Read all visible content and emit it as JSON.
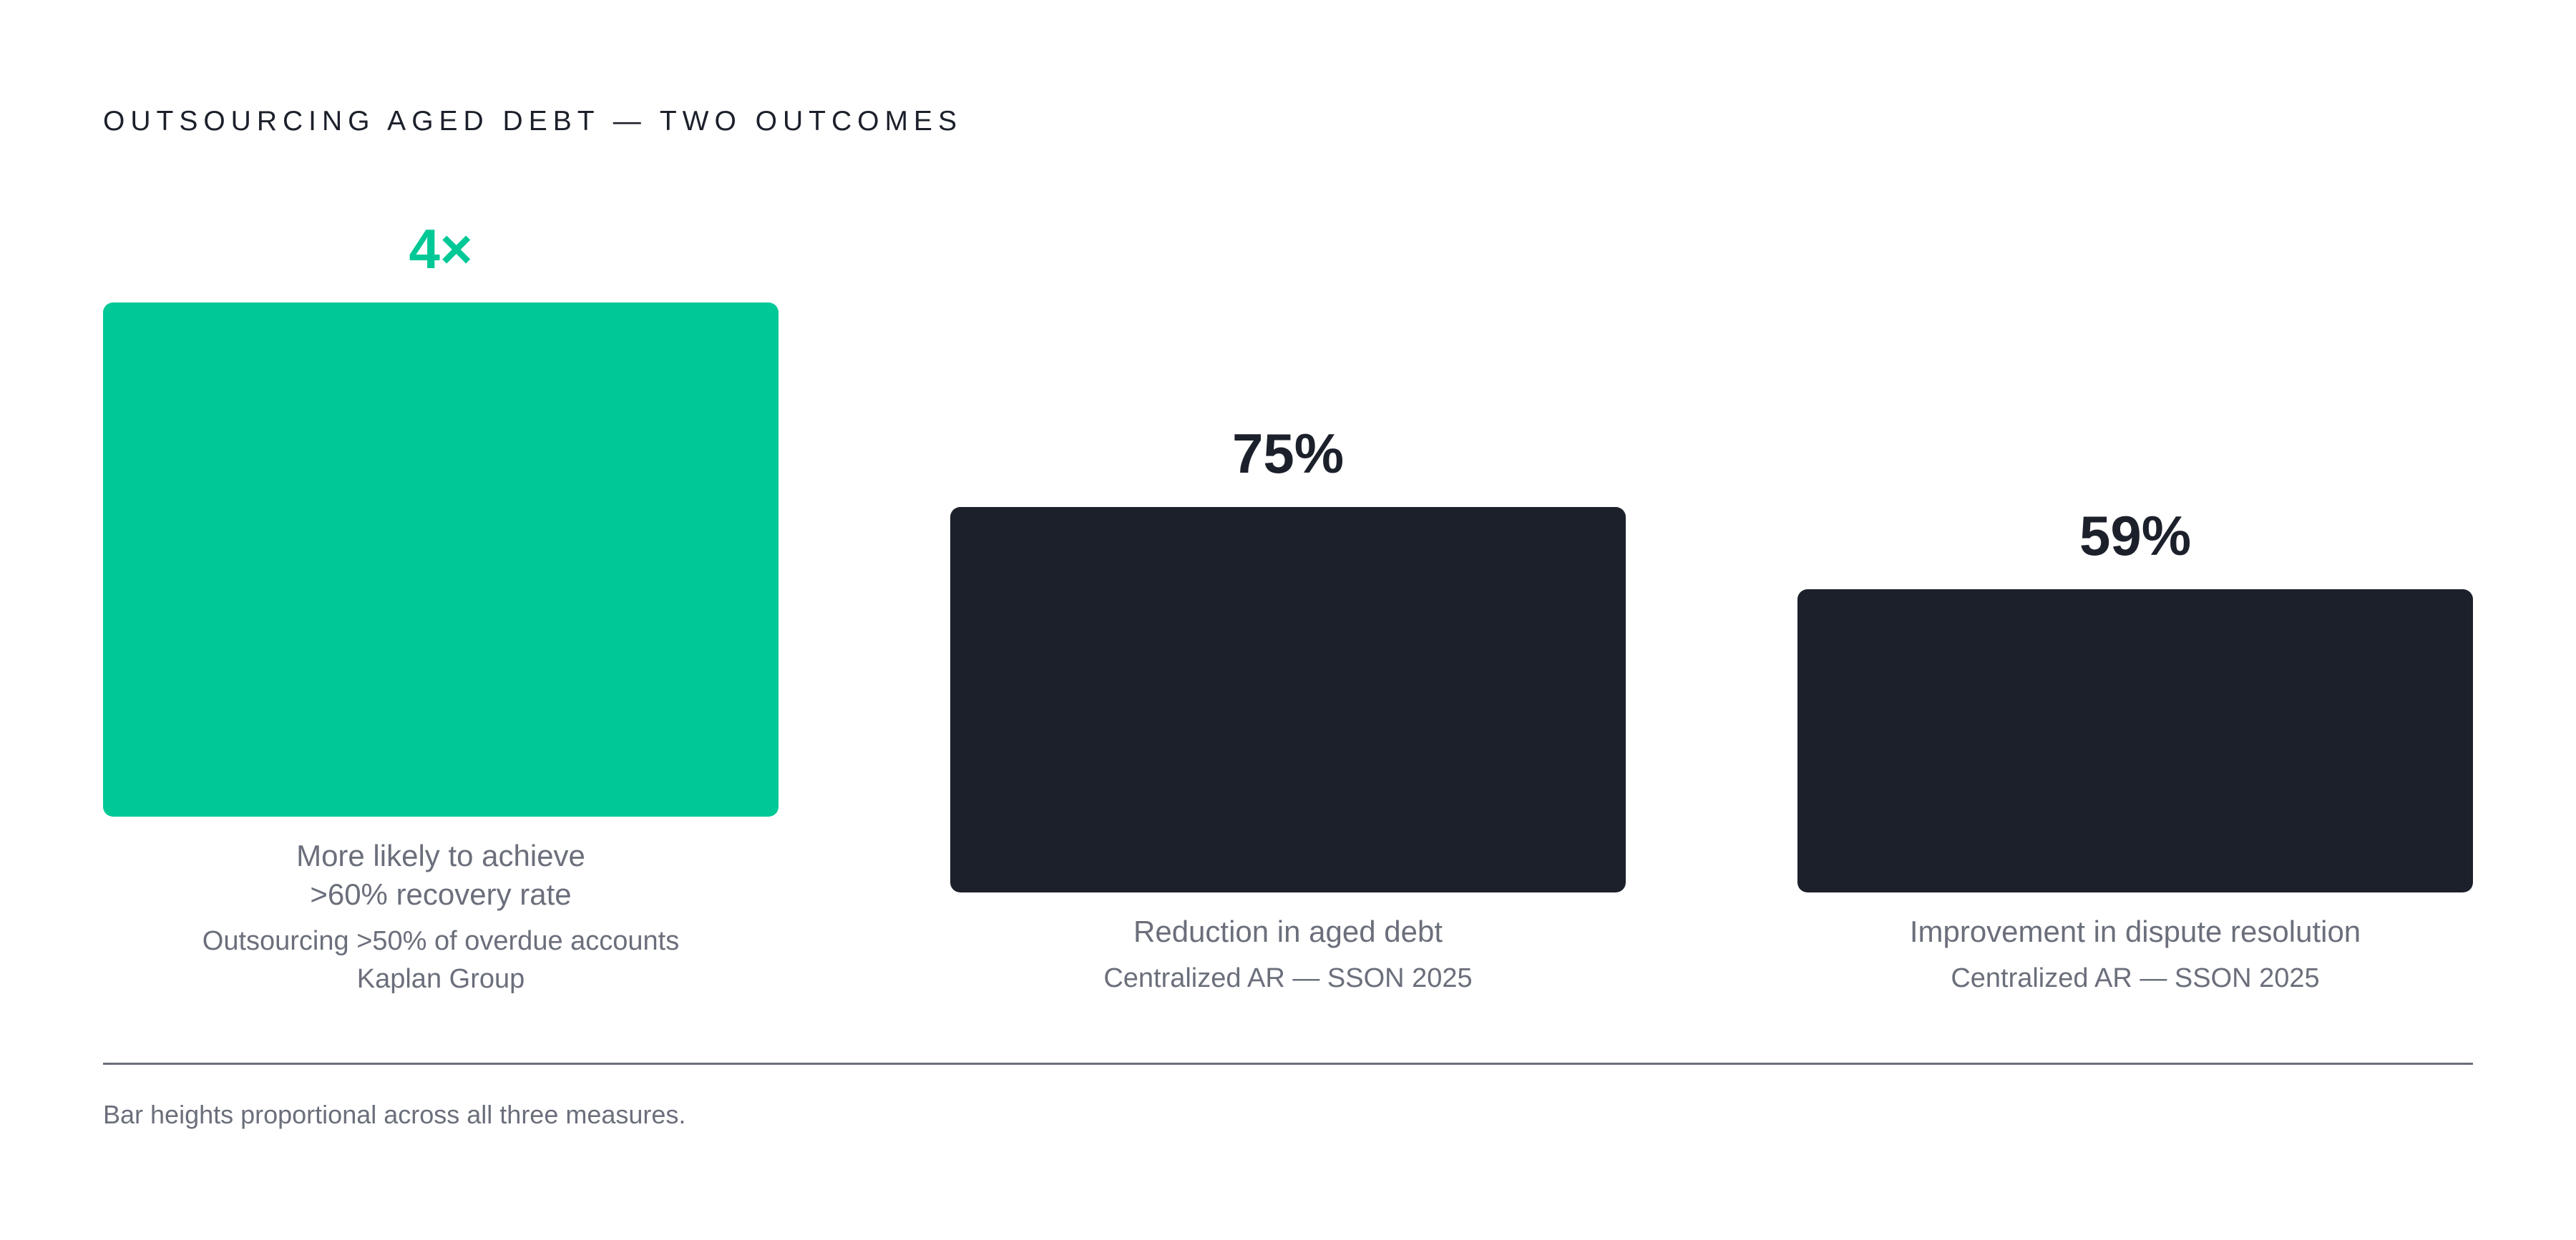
{
  "header": {
    "title": "OUTSOURCING AGED DEBT — TWO OUTCOMES"
  },
  "chart_data": {
    "type": "bar",
    "categories": [
      "More likely to achieve >60% recovery rate",
      "Reduction in aged debt",
      "Improvement in dispute resolution"
    ],
    "values": [
      4,
      0.75,
      0.59
    ],
    "value_labels": [
      "4×",
      "75%",
      "59%"
    ],
    "bars": [
      {
        "value_label": "4×",
        "label_lines": [
          "More likely to achieve",
          ">60% recovery rate"
        ],
        "source_lines": [
          "Outsourcing >50% of overdue accounts",
          "Kaplan Group"
        ],
        "color": "#00c896",
        "value_color": "#00c896",
        "relative_height": 1.0
      },
      {
        "value_label": "75%",
        "label_lines": [
          "Reduction in aged debt"
        ],
        "source_lines": [
          "Centralized AR — SSON 2025"
        ],
        "color": "#1c202b",
        "value_color": "#1c202b",
        "relative_height": 0.75
      },
      {
        "value_label": "59%",
        "label_lines": [
          "Improvement in dispute resolution"
        ],
        "source_lines": [
          "Centralized AR — SSON 2025"
        ],
        "color": "#1c202b",
        "value_color": "#1c202b",
        "relative_height": 0.59
      }
    ],
    "grid": false,
    "legend": "none"
  },
  "footer": {
    "note": "Bar heights proportional across all three measures."
  },
  "colors": {
    "accent": "#00c896",
    "dark": "#1c202b",
    "muted": "#6b6f7b"
  }
}
